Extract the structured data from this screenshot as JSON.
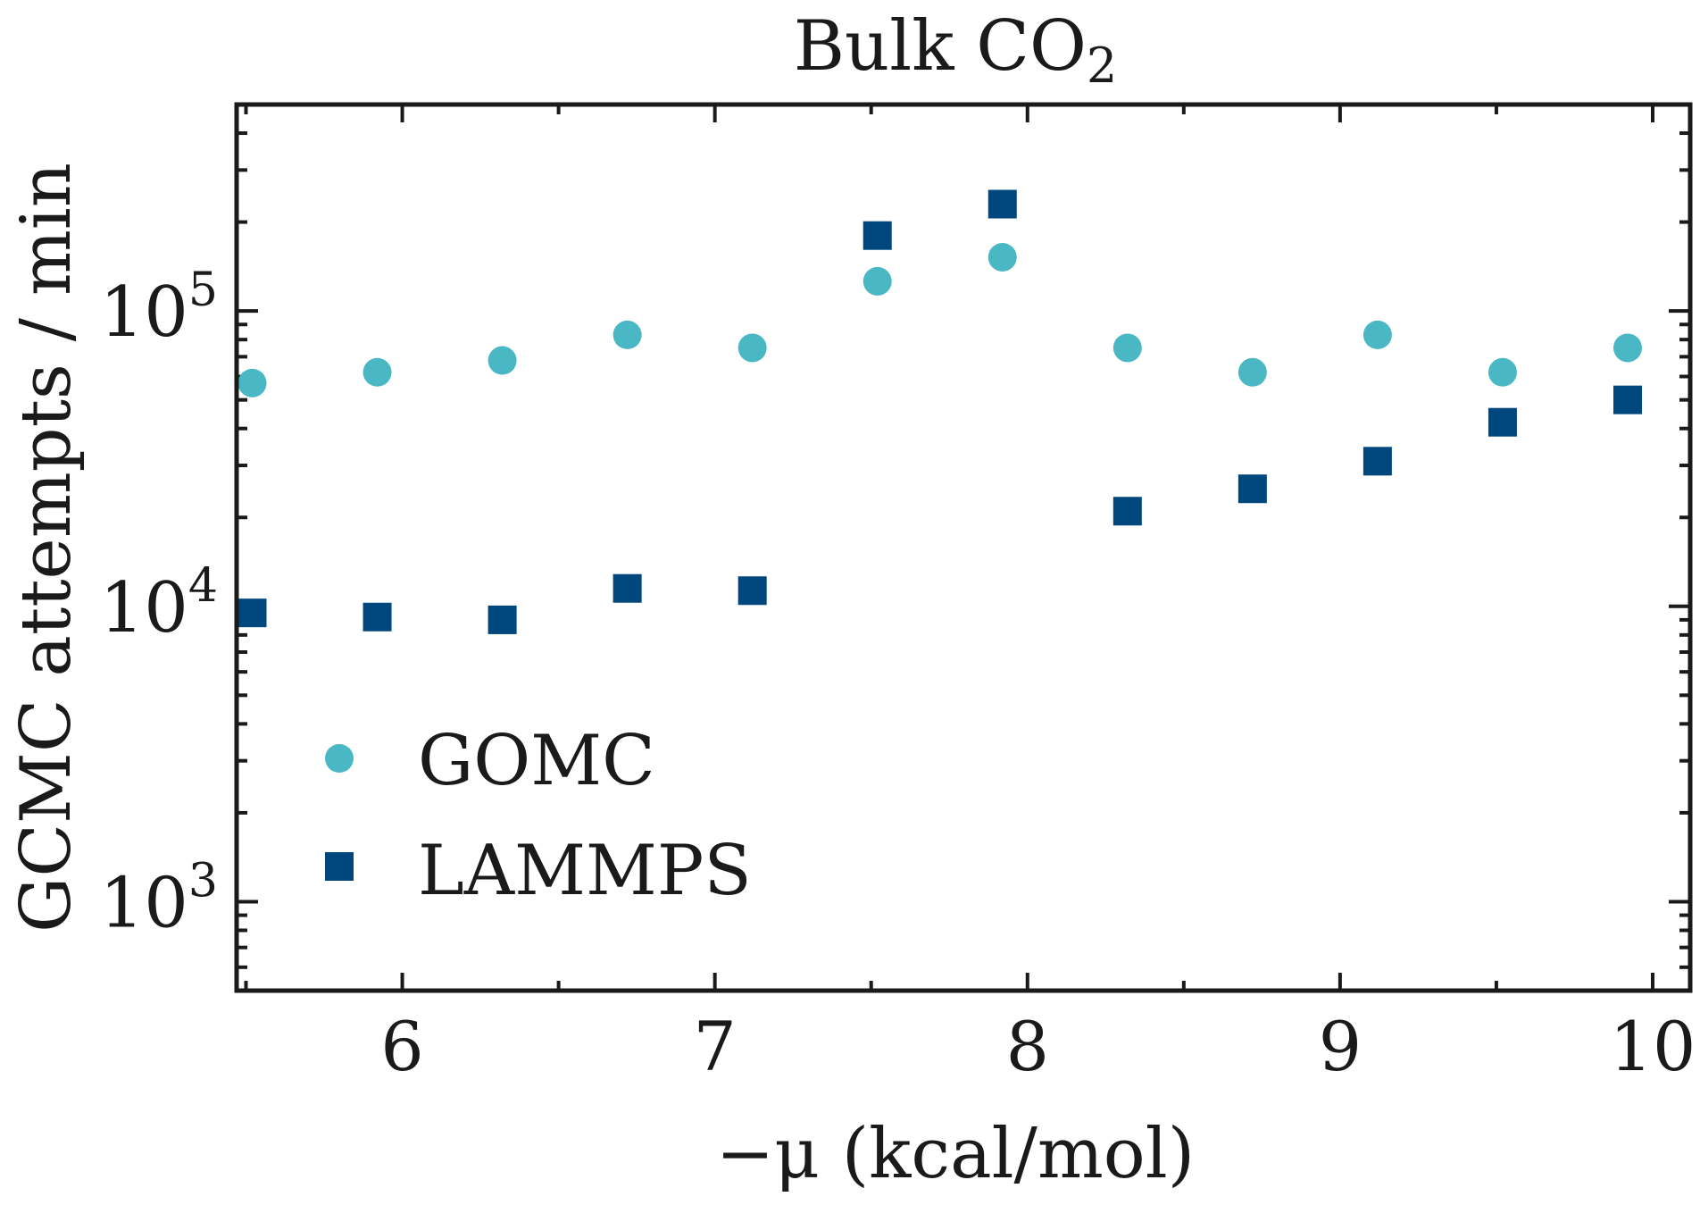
{
  "chart_data": {
    "type": "scatter",
    "title": {
      "text": "Bulk CO",
      "subscript": "2"
    },
    "xlabel": "−μ (kcal/mol)",
    "ylabel": "GCMC attempts / min",
    "xlim": [
      5.47,
      10.12
    ],
    "ylim": [
      500,
      500000
    ],
    "yscale": "log",
    "xticks": [
      6,
      7,
      8,
      9,
      10
    ],
    "yticks": [
      {
        "value": 1000,
        "base": "10",
        "exp": "3"
      },
      {
        "value": 10000,
        "base": "10",
        "exp": "4"
      },
      {
        "value": 100000,
        "base": "10",
        "exp": "5"
      }
    ],
    "grid": false,
    "legend_position": "lower-left",
    "series": [
      {
        "name": "GOMC",
        "marker": "circle",
        "color": "#4ab8c4",
        "x": [
          5.52,
          5.92,
          6.32,
          6.72,
          7.12,
          7.52,
          7.92,
          8.32,
          8.72,
          9.12,
          9.52,
          9.92
        ],
        "y": [
          57000,
          62000,
          68000,
          83000,
          75000,
          126000,
          152000,
          75000,
          62000,
          83000,
          62000,
          75000
        ]
      },
      {
        "name": "LAMMPS",
        "marker": "square",
        "color": "#00477d",
        "x": [
          5.52,
          5.92,
          6.32,
          6.72,
          7.12,
          7.52,
          7.92,
          8.32,
          8.72,
          9.12,
          9.52,
          9.92
        ],
        "y": [
          9500,
          9200,
          9000,
          11500,
          11300,
          180000,
          230000,
          21000,
          25000,
          31000,
          42000,
          50000
        ]
      }
    ]
  }
}
